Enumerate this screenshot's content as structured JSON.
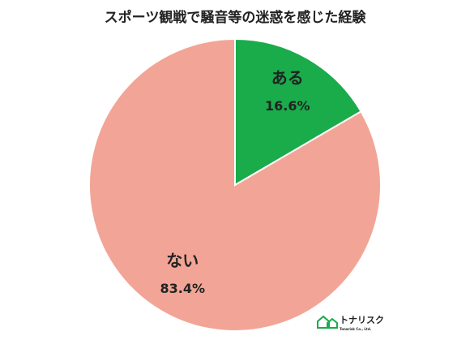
{
  "chart_data": {
    "type": "pie",
    "title": "スポーツ観戦で騒音等の迷惑を感じた経験",
    "categories": [
      "ある",
      "ない"
    ],
    "values": [
      16.6,
      83.4
    ],
    "value_labels": [
      "16.6%",
      "83.4%"
    ],
    "colors": [
      "#1aab4b",
      "#f2a596"
    ]
  },
  "logo": {
    "name": "トナリスク",
    "subtitle": "Tonarisk Co., Ltd."
  }
}
